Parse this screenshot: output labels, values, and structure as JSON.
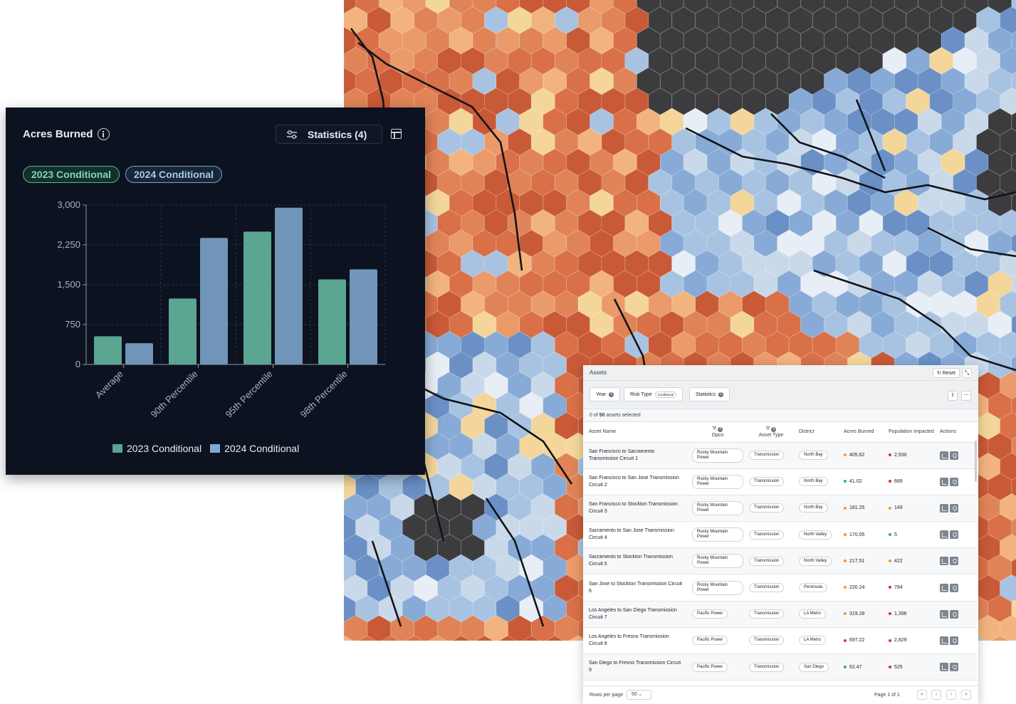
{
  "colors": {
    "series_2023": "#5ba592",
    "series_2024": "#7195b8",
    "panel_bg": "#0c1220",
    "dot_green": "#2fb457",
    "dot_orange": "#f09a2b",
    "dot_red": "#d8342e"
  },
  "chart_panel": {
    "title": "Acres Burned",
    "info_icon": "info-icon",
    "statistics_button": "Statistics (4)",
    "statistics_icon": "sliders-icon",
    "table_icon": "table-icon",
    "chips": [
      "2023 Conditional",
      "2024 Conditional"
    ]
  },
  "chart_data": {
    "type": "bar",
    "title": "Acres Burned",
    "categories": [
      "Average",
      "90th Percentile",
      "95th Percentile",
      "98th Percentile"
    ],
    "series": [
      {
        "name": "2023 Conditional",
        "values": [
          530,
          1240,
          2500,
          1600
        ]
      },
      {
        "name": "2024 Conditional",
        "values": [
          400,
          2380,
          2950,
          1790
        ]
      }
    ],
    "ylim": [
      0,
      3000
    ],
    "yticks": [
      "3,000",
      "2,250",
      "1,500",
      "750",
      "0"
    ],
    "ytick_values": [
      3000,
      2250,
      1500,
      750,
      0
    ],
    "grid": true,
    "legend_position": "bottom"
  },
  "assets": {
    "title": "Assets",
    "reset_label": "Reset",
    "filters": {
      "year_label": "Year",
      "year_count": "1",
      "risk_label": "Risk Type",
      "risk_value": "Conditional",
      "stats_label": "Statistics",
      "stats_count": "1"
    },
    "selection_pre": "0",
    "selection_of": " of ",
    "selection_count": "50",
    "selection_post": " assets selected",
    "columns": {
      "name": "Asset Name",
      "opco": "Opco",
      "opco_count": "2",
      "type": "Asset Type",
      "type_count": "3",
      "district": "District",
      "acres": "Acres Burned",
      "population": "Population Impacted",
      "actions": "Actions"
    },
    "rows": [
      {
        "name": "San Francisco to Sacramento Transmission Circuit 1",
        "opco": "Rocky Mountain Power",
        "type": "Transmission",
        "district": "North Bay",
        "acres": "405.62",
        "acres_color": "#f09a2b",
        "pop": "2,930",
        "pop_color": "#d8342e"
      },
      {
        "name": "San Francisco to San Jose Transmission Circuit 2",
        "opco": "Rocky Mountain Power",
        "type": "Transmission",
        "district": "North Bay",
        "acres": "41.02",
        "acres_color": "#2fb457",
        "pop": "689",
        "pop_color": "#d8342e"
      },
      {
        "name": "San Francisco to Stockton Transmission Circuit 3",
        "opco": "Rocky Mountain Power",
        "type": "Transmission",
        "district": "North Bay",
        "acres": "181.25",
        "acres_color": "#f09a2b",
        "pop": "149",
        "pop_color": "#f09a2b"
      },
      {
        "name": "Sacramento to San Jose Transmission Circuit 4",
        "opco": "Rocky Mountain Power",
        "type": "Transmission",
        "district": "North Valley",
        "acres": "170.05",
        "acres_color": "#f09a2b",
        "pop": "5",
        "pop_color": "#2fb457"
      },
      {
        "name": "Sacramento to Stockton Transmission Circuit 5",
        "opco": "Rocky Mountain Power",
        "type": "Transmission",
        "district": "North Valley",
        "acres": "217.51",
        "acres_color": "#f09a2b",
        "pop": "422",
        "pop_color": "#f09a2b"
      },
      {
        "name": "San Jose to Stockton Transmission Circuit 6",
        "opco": "Rocky Mountain Power",
        "type": "Transmission",
        "district": "Peninsula",
        "acres": "220.24",
        "acres_color": "#f09a2b",
        "pop": "784",
        "pop_color": "#d8342e"
      },
      {
        "name": "Los Angeles to San Diego Transmission Circuit 7",
        "opco": "Pacific Power",
        "type": "Transmission",
        "district": "LA Metro",
        "acres": "319.28",
        "acres_color": "#f09a2b",
        "pop": "1,396",
        "pop_color": "#d8342e"
      },
      {
        "name": "Los Angeles to Fresno Transmission Circuit 8",
        "opco": "Pacific Power",
        "type": "Transmission",
        "district": "LA Metro",
        "acres": "697.22",
        "acres_color": "#d8342e",
        "pop": "2,829",
        "pop_color": "#d8342e"
      },
      {
        "name": "San Diego to Fresno Transmission Circuit 9",
        "opco": "Pacific Power",
        "type": "Transmission",
        "district": "San Diego",
        "acres": "62.47",
        "acres_color": "#2fb457",
        "pop": "525",
        "pop_color": "#d8342e"
      }
    ],
    "footer": {
      "rows_per_page_label": "Rows per page",
      "rows_per_page_value": "50",
      "page_label": "Page 1 of 1"
    }
  }
}
